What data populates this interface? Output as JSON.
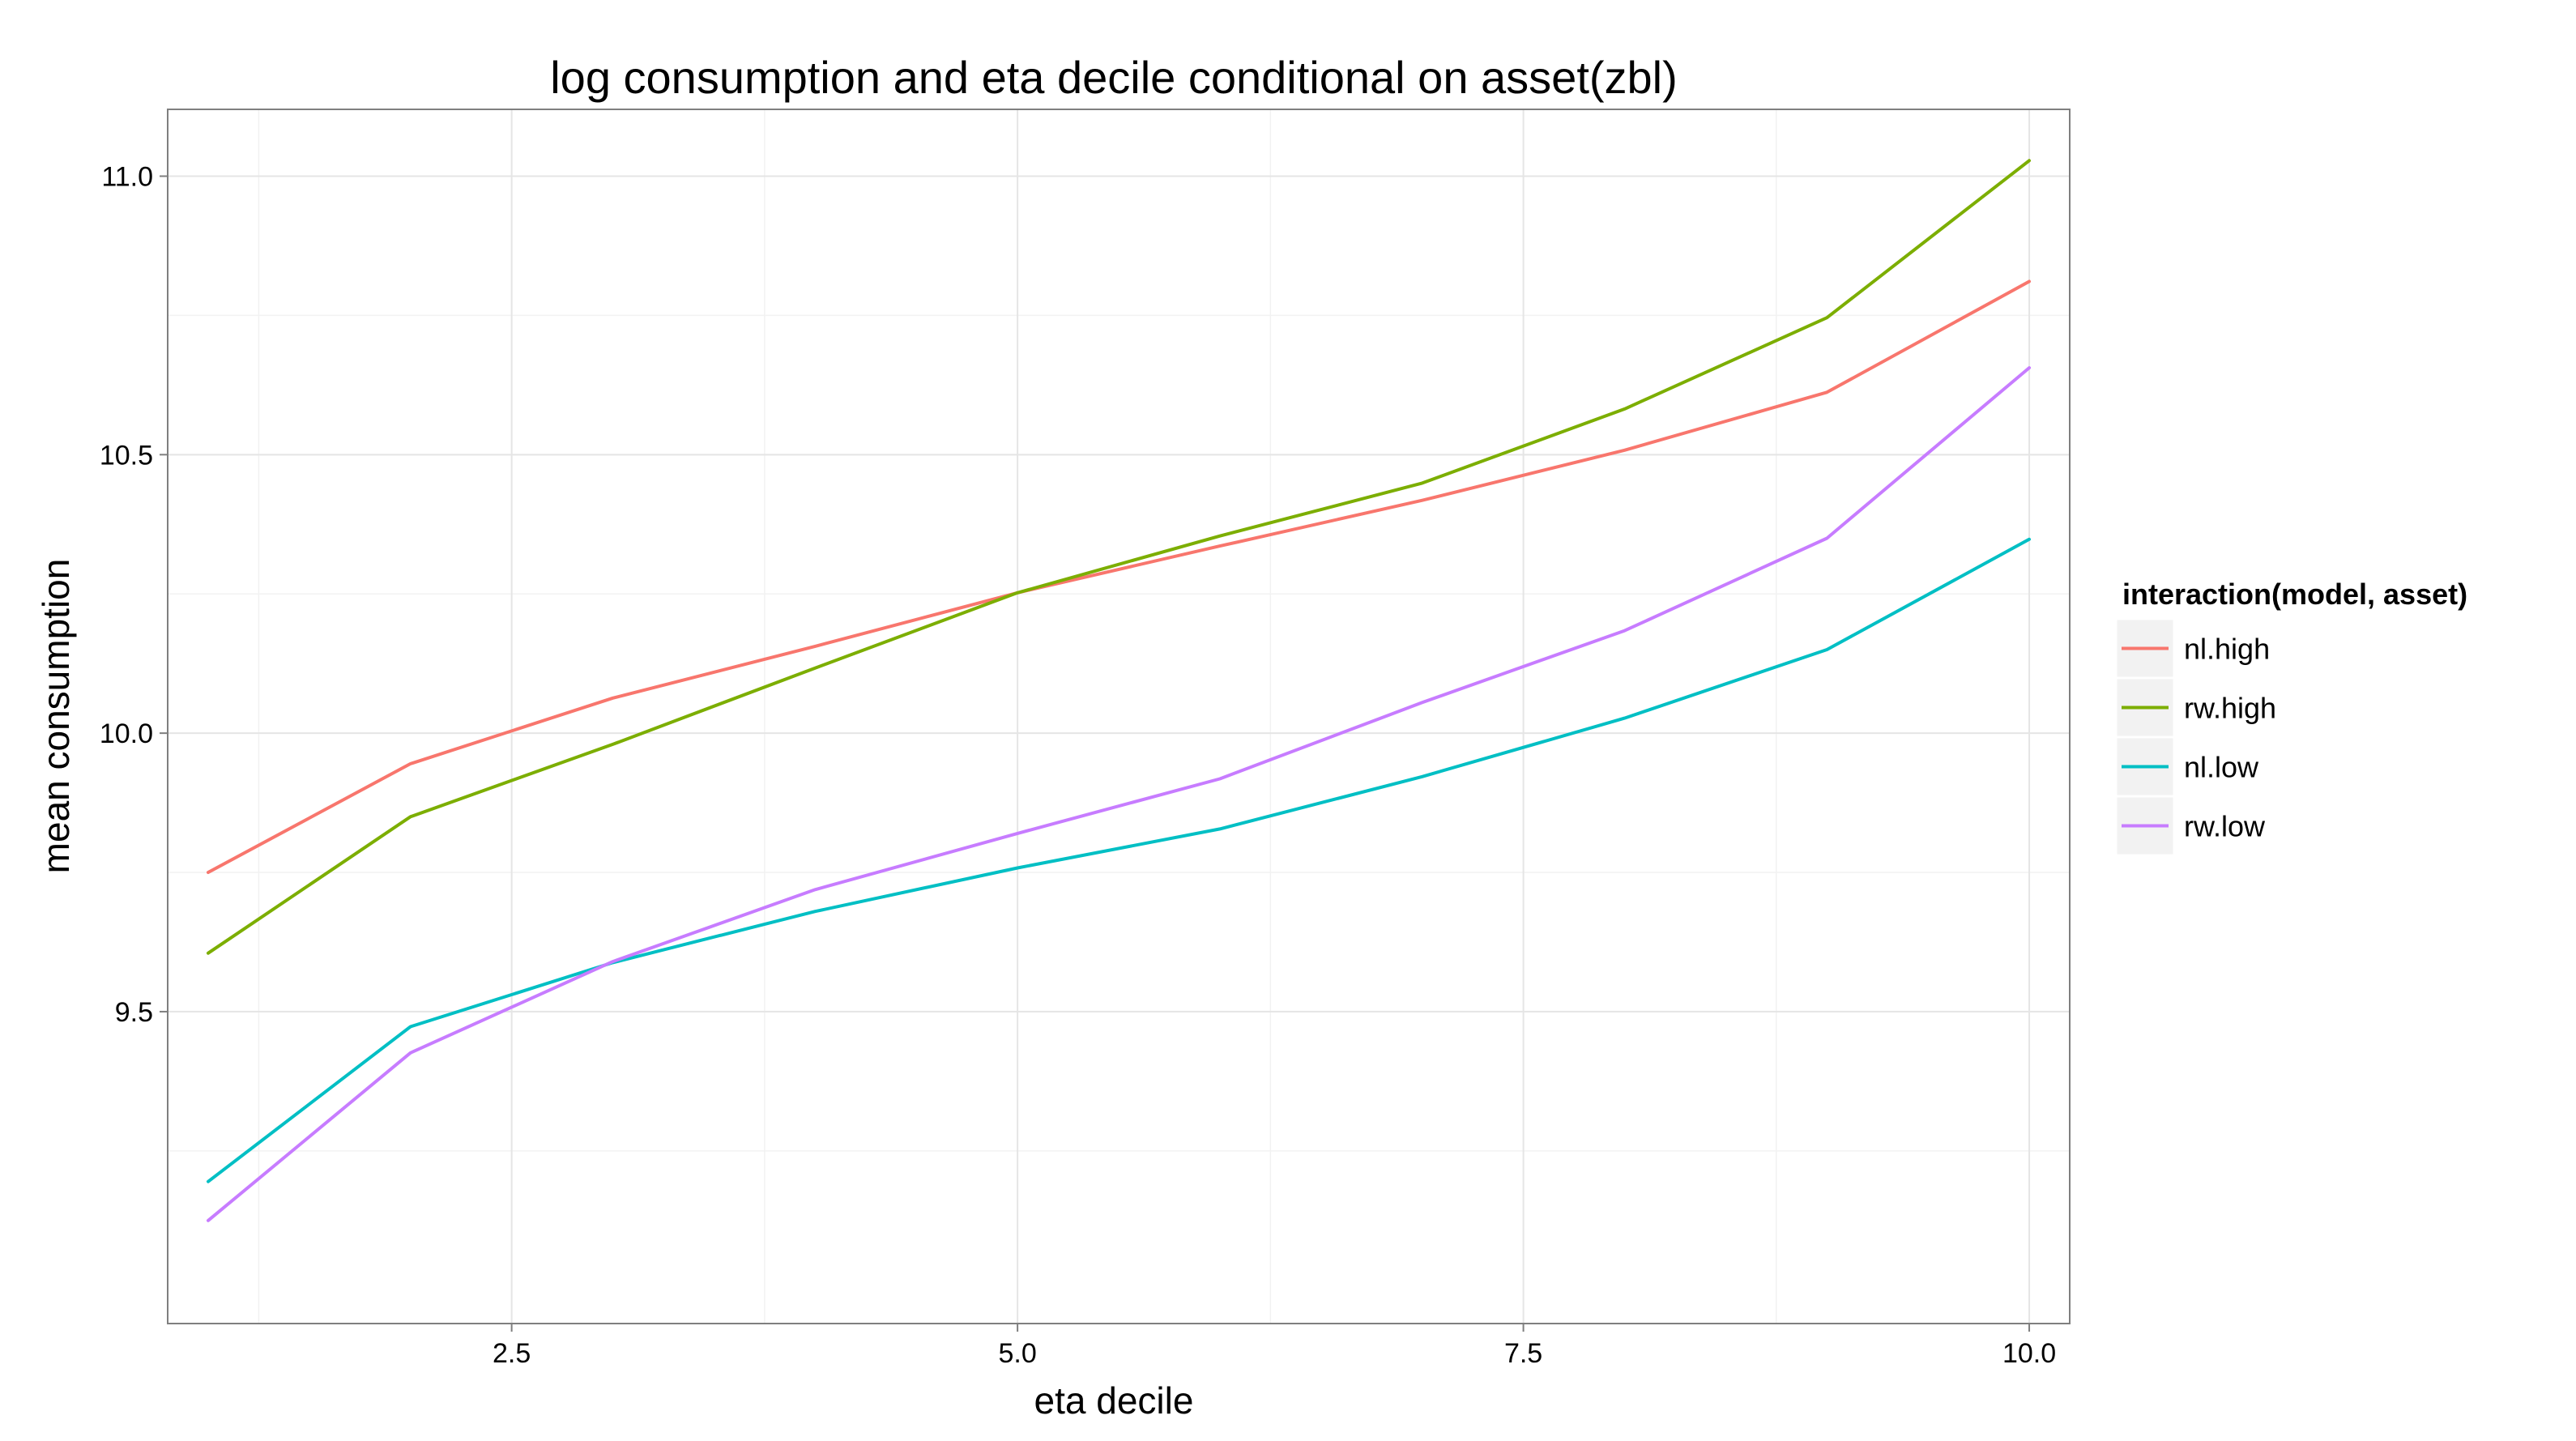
{
  "chart_data": {
    "type": "line",
    "title": "log consumption and eta decile conditional on asset(zbl)",
    "xlabel": "eta decile",
    "ylabel": "mean consumption",
    "xlim": [
      0.8,
      10.2
    ],
    "ylim": [
      8.94,
      11.12
    ],
    "x_ticks": [
      2.5,
      5.0,
      7.5,
      10.0
    ],
    "x_tick_labels": [
      "2.5",
      "5.0",
      "7.5",
      "10.0"
    ],
    "y_ticks": [
      9.5,
      10.0,
      10.5,
      11.0
    ],
    "y_tick_labels": [
      "9.5",
      "10.0",
      "10.5",
      "11.0"
    ],
    "grid": true,
    "legend_title": "interaction(model, asset)",
    "legend_position": "right",
    "x": [
      1,
      2,
      3,
      4,
      5,
      6,
      7,
      8,
      9,
      10
    ],
    "series": [
      {
        "name": "nl.high",
        "color": "#F8766D",
        "values": [
          9.75,
          9.945,
          10.063,
          10.156,
          10.252,
          10.336,
          10.418,
          10.508,
          10.612,
          10.811
        ]
      },
      {
        "name": "rw.high",
        "color": "#7CAE00",
        "values": [
          9.605,
          9.85,
          9.98,
          10.117,
          10.252,
          10.354,
          10.449,
          10.582,
          10.746,
          11.028
        ]
      },
      {
        "name": "nl.low",
        "color": "#00BFC4",
        "values": [
          9.195,
          9.473,
          9.588,
          9.68,
          9.758,
          9.828,
          9.922,
          10.027,
          10.15,
          10.348
        ]
      },
      {
        "name": "rw.low",
        "color": "#C77CFF",
        "values": [
          9.125,
          9.426,
          9.59,
          9.719,
          9.82,
          9.918,
          10.055,
          10.184,
          10.35,
          10.656
        ]
      }
    ]
  }
}
